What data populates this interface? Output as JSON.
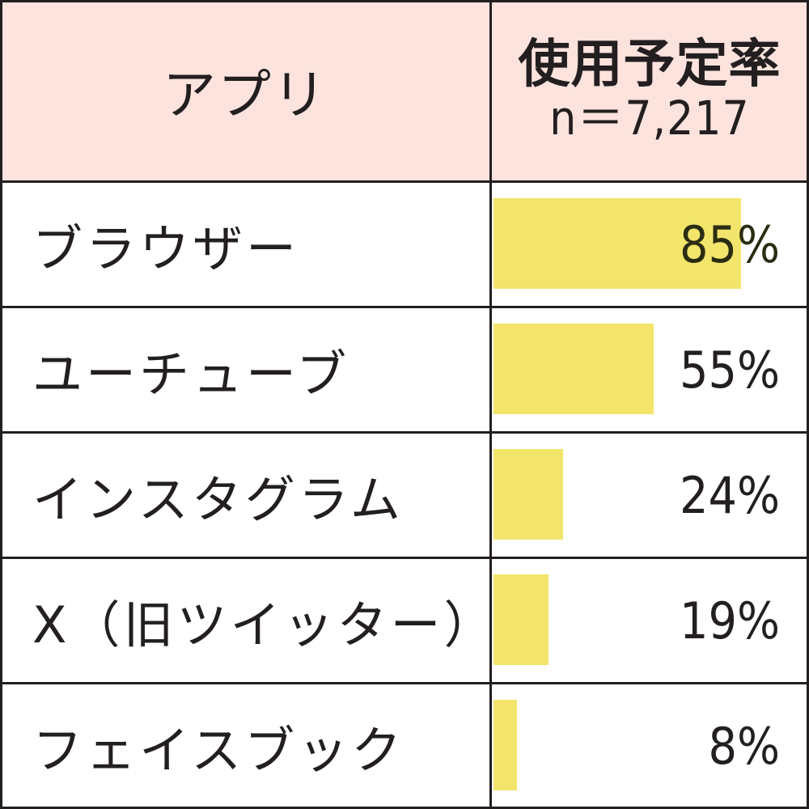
{
  "header": {
    "app_label": "アプリ",
    "rate_label": "使用予定率",
    "n_label": "n＝7,217"
  },
  "rows": [
    {
      "label": "ブラウザー",
      "value_label": "85%"
    },
    {
      "label": "ユーチューブ",
      "value_label": "55%"
    },
    {
      "label": "インスタグラム",
      "value_label": "24%"
    },
    {
      "label": "X（旧ツイッター）",
      "value_label": "19%"
    },
    {
      "label": "フェイスブック",
      "value_label": "8%"
    }
  ],
  "chart_data": {
    "type": "bar",
    "orientation": "horizontal",
    "categories": [
      "ブラウザー",
      "ユーチューブ",
      "インスタグラム",
      "X（旧ツイッター）",
      "フェイスブック"
    ],
    "values": [
      85,
      55,
      24,
      19,
      8
    ],
    "unit": "%",
    "xlim": [
      0,
      100
    ],
    "bar_color": "#f3e56c",
    "header_color": "#fde3dd",
    "grid": false
  }
}
